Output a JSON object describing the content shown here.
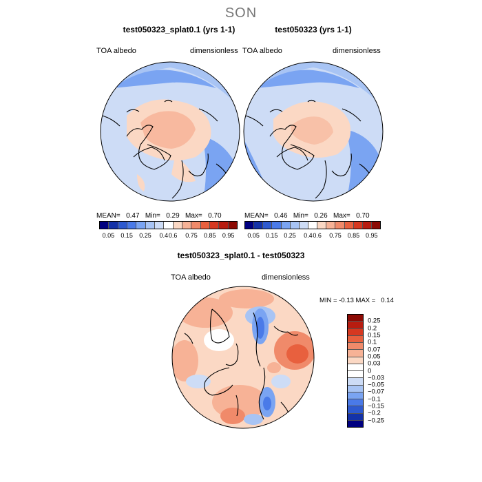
{
  "title": "SON",
  "panels": [
    {
      "title": "test050323_splat0.1 (yrs 1-1)",
      "var_label": "TOA albedo",
      "units": "dimensionless",
      "stats": {
        "mean_label": "MEAN=",
        "mean": "0.47",
        "min_label": "Min=",
        "min": "0.29",
        "max_label": "Max=",
        "max": "0.70"
      }
    },
    {
      "title": "test050323 (yrs 1-1)",
      "var_label": "TOA albedo",
      "units": "dimensionless",
      "stats": {
        "mean_label": "MEAN=",
        "mean": "0.46",
        "min_label": "Min=",
        "min": "0.26",
        "max_label": "Max=",
        "max": "0.70"
      }
    }
  ],
  "abs_colorbar": {
    "labels": [
      "0.05",
      "0.15",
      "0.25",
      "0.4",
      "0.6",
      "0.75",
      "0.85",
      "0.95"
    ],
    "colors": [
      "#000080",
      "#1432a8",
      "#2e5ad0",
      "#4a7ae8",
      "#7aa4f2",
      "#a8c4f4",
      "#cddcf6",
      "#ffffff",
      "#fbd8c4",
      "#f7b296",
      "#f08a6a",
      "#e8603e",
      "#d63820",
      "#b81c10",
      "#8c0a04"
    ]
  },
  "diff_panel": {
    "title": "test050323_splat0.1 - test050323",
    "var_label": "TOA albedo",
    "units": "dimensionless",
    "min_label": "MIN =",
    "min": "-0.13",
    "max_label": "MAX =",
    "max": "0.14"
  },
  "diff_colorbar": {
    "labels": [
      "0.25",
      "0.2",
      "0.15",
      "0.1",
      "0.07",
      "0.05",
      "0.03",
      "0",
      "−0.03",
      "−0.05",
      "−0.07",
      "−0.1",
      "−0.15",
      "−0.2",
      "−0.25"
    ],
    "colors": [
      "#8c0a04",
      "#b81c10",
      "#d63820",
      "#e8603e",
      "#f08a6a",
      "#f7b296",
      "#fbd8c4",
      "#ffffff",
      "#ffffff",
      "#cddcf6",
      "#a8c4f4",
      "#7aa4f2",
      "#4a7ae8",
      "#2e5ad0",
      "#1432a8",
      "#000080"
    ]
  }
}
